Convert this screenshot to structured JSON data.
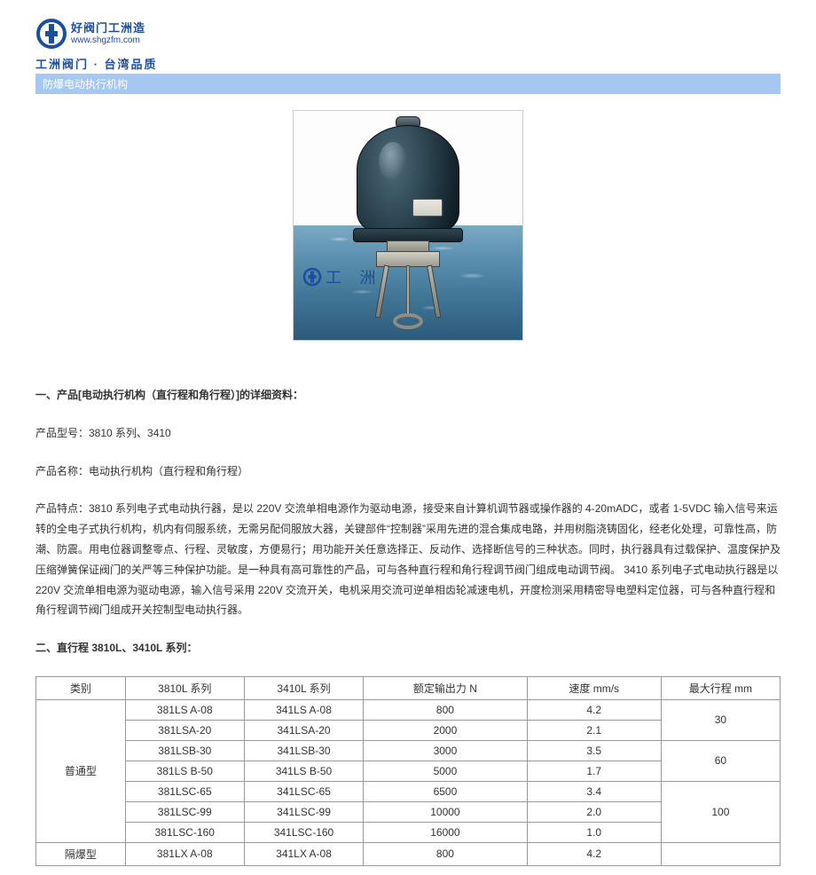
{
  "logo": {
    "line1": "好阀门工洲造",
    "line2": "www.shgzfm.com",
    "icon_color": "#1a4fa0"
  },
  "brand_bar": "工洲阀门 · 台湾品质",
  "title_bar": "防爆电动执行机构",
  "watermark": {
    "text": "工  洲"
  },
  "section1_heading": "一、产品[电动执行机构（直行程和角行程）]的详细资料：",
  "model_line": "产品型号：3810 系列、3410",
  "name_line": "产品名称：电动执行机构（直行程和角行程）",
  "desc_para": "产品特点：3810 系列电子式电动执行器，是以 220V 交流单相电源作为驱动电源，接受来自计算机调节器或操作器的 4-20mADC，或者 1-5VDC 输入信号来运转的全电子式执行机构，机内有伺服系统，无需另配伺服放大器，关键部件“控制器”采用先进的混合集成电路，并用树脂浇铸固化，经老化处理，可靠性高，防潮、防震。用电位器调整零点、行程、灵敏度，方便易行；用功能开关任意选择正、反动作、选择断信号的三种状态。同时，执行器具有过载保护、温度保护及压缩弹簧保证阀门的关严等三种保护功能。是一种具有高可靠性的产品，可与各种直行程和角行程调节阀门组成电动调节阀。 3410 系列电子式电动执行器是以 220V 交流单相电源为驱动电源，输入信号采用 220V 交流开关，电机采用交流可逆单相齿轮减速电机，开度检测采用精密导电塑料定位器，可与各种直行程和角行程调节阀门组成开关控制型电动执行器。",
  "section2_heading": "二、直行程 3810L、3410L 系列：",
  "table": {
    "columns": [
      "类别",
      "3810L 系列",
      "3410L 系列",
      "额定输出力 N",
      "速度 mm/s",
      "最大行程 mm"
    ],
    "col_widths_pct": [
      12,
      16,
      16,
      22,
      18,
      16
    ],
    "groups": [
      {
        "category": "普通型",
        "rows": [
          {
            "c1": "381LS A-08",
            "c2": "341LS A-08",
            "out": "800",
            "speed": "4.2",
            "stroke_group": "30"
          },
          {
            "c1": "381LSA-20",
            "c2": "341LSA-20",
            "out": "2000",
            "speed": "2.1"
          },
          {
            "c1": "381LSB-30",
            "c2": "341LSB-30",
            "out": "3000",
            "speed": "3.5",
            "stroke_group": "60"
          },
          {
            "c1": "381LS B-50",
            "c2": "341LS B-50",
            "out": "5000",
            "speed": "1.7"
          },
          {
            "c1": "381LSC-65",
            "c2": "341LSC-65",
            "out": "6500",
            "speed": "3.4",
            "stroke_group": "100"
          },
          {
            "c1": "381LSC-99",
            "c2": "341LSC-99",
            "out": "10000",
            "speed": "2.0"
          },
          {
            "c1": "381LSC-160",
            "c2": "341LSC-160",
            "out": "16000",
            "speed": "1.0"
          }
        ]
      },
      {
        "category": "隔爆型",
        "rows": [
          {
            "c1": "381LX A-08",
            "c2": "341LX A-08",
            "out": "800",
            "speed": "4.2"
          }
        ]
      }
    ]
  },
  "colors": {
    "title_bar_bg": "#a6c8f0",
    "title_bar_text": "#ffffff",
    "brand_text": "#1a4fa0",
    "table_border": "#999999",
    "body_text": "#333333"
  }
}
